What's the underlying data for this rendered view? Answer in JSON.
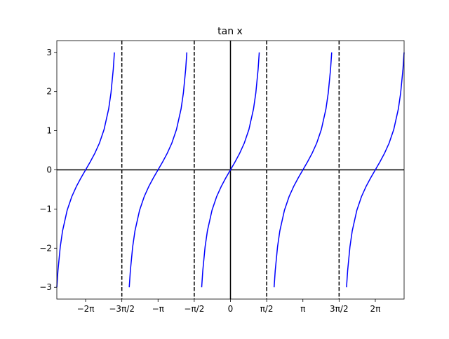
{
  "chart_data": {
    "type": "line",
    "title": "tan x",
    "color": "#0000ff",
    "x": [
      -7.532,
      -7.483,
      -7.383,
      -7.283,
      -7.083,
      -6.883,
      -6.683,
      -6.483,
      -6.283,
      -6.083,
      -5.883,
      -5.683,
      -5.483,
      -5.283,
      -5.183,
      -5.083,
      -5.034,
      -4.712,
      -4.391,
      -4.342,
      -4.242,
      -4.142,
      -3.942,
      -3.742,
      -3.542,
      -3.342,
      -3.142,
      -2.942,
      -2.742,
      -2.542,
      -2.342,
      -2.142,
      -2.042,
      -1.942,
      -1.893,
      -1.571,
      -1.249,
      -1.2,
      -1.1,
      -1.0,
      -0.8,
      -0.6,
      -0.4,
      -0.2,
      0,
      0.2,
      0.4,
      0.6,
      0.8,
      1.0,
      1.1,
      1.2,
      1.249,
      1.571,
      1.893,
      1.942,
      2.042,
      2.142,
      2.342,
      2.542,
      2.742,
      2.942,
      3.142,
      3.342,
      3.542,
      3.742,
      3.942,
      4.142,
      4.242,
      4.342,
      4.391,
      4.712,
      5.034,
      5.083,
      5.183,
      5.283,
      5.483,
      5.683,
      5.883,
      6.083,
      6.283,
      6.483,
      6.683,
      6.883,
      7.083,
      7.283,
      7.383,
      7.483,
      7.532
    ],
    "values": [
      -3,
      -2.572,
      -1.965,
      -1.557,
      -1.03,
      -0.684,
      -0.423,
      -0.203,
      0,
      0.203,
      0.423,
      0.684,
      1.03,
      1.557,
      1.965,
      2.572,
      3,
      null,
      -3,
      -2.572,
      -1.965,
      -1.557,
      -1.03,
      -0.684,
      -0.423,
      -0.203,
      0,
      0.203,
      0.423,
      0.684,
      1.03,
      1.557,
      1.965,
      2.572,
      3,
      null,
      -3,
      -2.572,
      -1.965,
      -1.557,
      -1.03,
      -0.684,
      -0.423,
      -0.203,
      0,
      0.203,
      0.423,
      0.684,
      1.03,
      1.557,
      1.965,
      2.572,
      3,
      null,
      -3,
      -2.572,
      -1.965,
      -1.557,
      -1.03,
      -0.684,
      -0.423,
      -0.203,
      0,
      0.203,
      0.423,
      0.684,
      1.03,
      1.557,
      1.965,
      2.572,
      3,
      null,
      -3,
      -2.572,
      -1.965,
      -1.557,
      -1.03,
      -0.684,
      -0.423,
      -0.203,
      0,
      0.203,
      0.423,
      0.684,
      1.03,
      1.557,
      1.965,
      2.572,
      3
    ],
    "xlim": [
      -7.532,
      7.532
    ],
    "ylim": [
      -3.3,
      3.3
    ],
    "xticks": [
      {
        "value": -6.283,
        "label": "−2π"
      },
      {
        "value": -4.712,
        "label": "−3π/2"
      },
      {
        "value": -3.142,
        "label": "−π"
      },
      {
        "value": -1.571,
        "label": "−π/2"
      },
      0,
      {
        "value": 1.571,
        "label": "π/2"
      },
      {
        "value": 3.142,
        "label": "π"
      },
      {
        "value": 4.712,
        "label": "3π/2"
      },
      {
        "value": 6.283,
        "label": "2π"
      }
    ],
    "yticks": [
      {
        "value": -3,
        "label": "−3"
      },
      {
        "value": -2,
        "label": "−2"
      },
      {
        "value": -1,
        "label": "−1"
      },
      0,
      1,
      2,
      3
    ],
    "asymptotes": [
      -4.712,
      -1.571,
      1.571,
      4.712
    ],
    "axhline": 0,
    "axvline": 0
  }
}
